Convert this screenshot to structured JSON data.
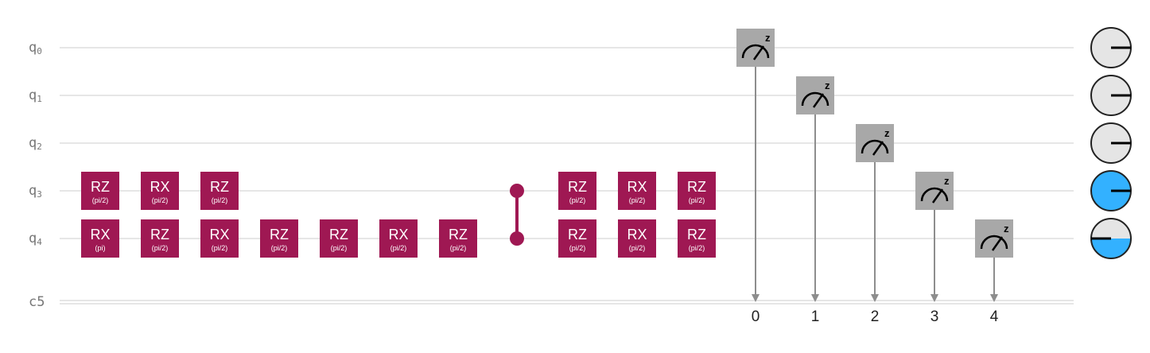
{
  "colors": {
    "wire": "#dddddd",
    "gate": "#9f1853",
    "measure_box": "#a8a8a8",
    "arrow": "#8d8d8d",
    "state_empty": "#e5e5e5",
    "state_fill": "#33b1ff",
    "label": "#777777"
  },
  "wires": [
    {
      "name": "q",
      "sub": "0"
    },
    {
      "name": "q",
      "sub": "1"
    },
    {
      "name": "q",
      "sub": "2"
    },
    {
      "name": "q",
      "sub": "3"
    },
    {
      "name": "q",
      "sub": "4"
    },
    {
      "name": "c5",
      "sub": ""
    }
  ],
  "gates": [
    {
      "qubit": 3,
      "step": 0,
      "name": "RZ",
      "param": "(pi/2)"
    },
    {
      "qubit": 3,
      "step": 1,
      "name": "RX",
      "param": "(pi/2)"
    },
    {
      "qubit": 3,
      "step": 2,
      "name": "RZ",
      "param": "(pi/2)"
    },
    {
      "qubit": 4,
      "step": 0,
      "name": "RX",
      "param": "(pi)"
    },
    {
      "qubit": 4,
      "step": 1,
      "name": "RZ",
      "param": "(pi/2)"
    },
    {
      "qubit": 4,
      "step": 2,
      "name": "RX",
      "param": "(pi/2)"
    },
    {
      "qubit": 4,
      "step": 3,
      "name": "RZ",
      "param": "(pi/2)"
    },
    {
      "qubit": 4,
      "step": 4,
      "name": "RZ",
      "param": "(pi/2)"
    },
    {
      "qubit": 4,
      "step": 5,
      "name": "RX",
      "param": "(pi/2)"
    },
    {
      "qubit": 4,
      "step": 6,
      "name": "RZ",
      "param": "(pi/2)"
    },
    {
      "qubit": 3,
      "step": 8,
      "name": "RZ",
      "param": "(pi/2)"
    },
    {
      "qubit": 3,
      "step": 9,
      "name": "RX",
      "param": "(pi/2)"
    },
    {
      "qubit": 3,
      "step": 10,
      "name": "RZ",
      "param": "(pi/2)"
    },
    {
      "qubit": 4,
      "step": 8,
      "name": "RZ",
      "param": "(pi/2)"
    },
    {
      "qubit": 4,
      "step": 9,
      "name": "RX",
      "param": "(pi/2)"
    },
    {
      "qubit": 4,
      "step": 10,
      "name": "RZ",
      "param": "(pi/2)"
    }
  ],
  "controlled_z": [
    {
      "step": 7,
      "qubits": [
        3,
        4
      ]
    }
  ],
  "measurements": [
    {
      "qubit": 0,
      "bit": "0",
      "basis": "z"
    },
    {
      "qubit": 1,
      "bit": "1",
      "basis": "z"
    },
    {
      "qubit": 2,
      "bit": "2",
      "basis": "z"
    },
    {
      "qubit": 3,
      "bit": "3",
      "basis": "z"
    },
    {
      "qubit": 4,
      "bit": "4",
      "basis": "z"
    }
  ],
  "qubit_states": [
    {
      "qubit": 0,
      "probability_one": 0.0
    },
    {
      "qubit": 1,
      "probability_one": 0.0
    },
    {
      "qubit": 2,
      "probability_one": 0.0
    },
    {
      "qubit": 3,
      "probability_one": 1.0
    },
    {
      "qubit": 4,
      "probability_one": 0.5
    }
  ]
}
